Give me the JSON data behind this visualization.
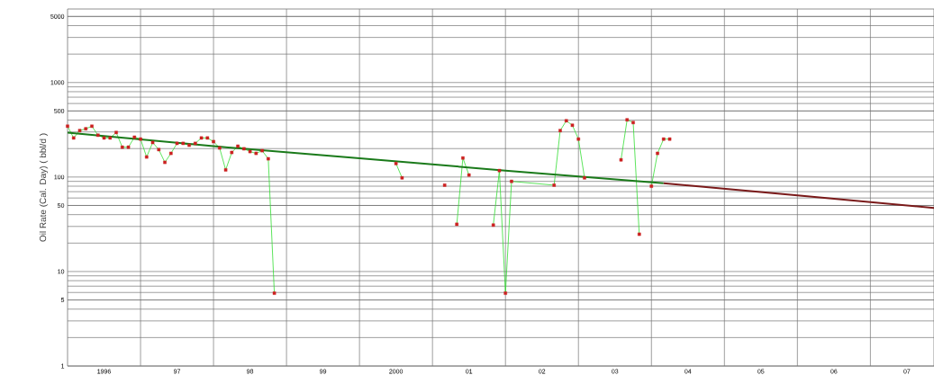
{
  "chart_data": {
    "type": "line",
    "ylabel": "Oil Rate (Cal. Day) ( bbl/d )",
    "x": [
      "1996-01",
      "1996-02",
      "1996-03",
      "1996-04",
      "1996-05",
      "1996-06",
      "1996-07",
      "1996-08",
      "1996-09",
      "1996-10",
      "1996-11",
      "1996-12",
      "1997-01",
      "1997-02",
      "1997-03",
      "1997-04",
      "1997-05",
      "1997-06",
      "1997-07",
      "1997-08",
      "1997-09",
      "1997-10",
      "1997-11",
      "1997-12",
      "1998-01",
      "1998-02",
      "1998-03",
      "1998-04",
      "1998-05",
      "1998-06",
      "1998-07",
      "1998-08",
      "1998-09",
      "1998-10",
      "1998-11",
      "1999-09",
      "2000-07",
      "2000-08",
      "2000-12",
      "2001-03",
      "2001-04",
      "2001-05",
      "2001-06",
      "2001-07",
      "2001-09",
      "2001-11",
      "2001-12",
      "2002-01",
      "2002-02",
      "2002-09",
      "2002-10",
      "2002-11",
      "2002-12",
      "2003-01",
      "2003-02",
      "2003-05",
      "2003-08",
      "2003-09",
      "2003-10",
      "2003-11",
      "2003-12",
      "2004-01",
      "2004-02",
      "2004-03",
      "2004-04"
    ],
    "series": [
      {
        "type": "line",
        "marker": "none",
        "color": "#33dd33",
        "values": [
          345,
          259,
          310,
          324,
          345,
          277,
          259,
          259,
          296,
          207,
          207,
          264,
          252,
          163,
          232,
          195,
          143,
          178,
          227,
          227,
          217,
          227,
          259,
          259,
          237,
          203,
          119,
          182,
          212,
          199,
          186,
          178,
          190,
          156,
          5.9,
          null,
          139,
          98,
          null,
          null,
          null,
          31.6,
          159,
          105,
          null,
          31,
          117,
          5.9,
          90,
          82,
          310,
          394,
          353,
          252,
          98,
          null,
          152,
          403,
          377,
          24.8,
          null,
          80,
          178,
          252,
          252
        ]
      },
      {
        "type": "scatter",
        "marker": "square",
        "color": "#cc2020",
        "values": [
          345,
          259,
          310,
          324,
          345,
          277,
          259,
          259,
          296,
          207,
          207,
          264,
          252,
          163,
          232,
          195,
          143,
          178,
          227,
          227,
          217,
          227,
          259,
          259,
          237,
          203,
          119,
          182,
          212,
          199,
          186,
          178,
          190,
          156,
          5.9,
          null,
          139,
          98,
          null,
          82,
          null,
          31.6,
          159,
          105,
          null,
          31,
          117,
          5.9,
          90,
          82,
          310,
          394,
          353,
          252,
          98,
          null,
          152,
          403,
          377,
          24.8,
          null,
          80,
          178,
          252,
          252
        ]
      },
      {
        "marker": "none",
        "color": "#1a7a1a",
        "x": [
          "1996-01",
          "1998-01",
          "2000-01",
          "2002-01",
          "2004-03"
        ],
        "values": [
          295,
          212,
          158,
          117,
          86
        ]
      },
      {
        "marker": "none",
        "color": "#7a1a1a",
        "x": [
          "2004-03",
          "2006-01",
          "2007-11-15"
        ],
        "values": [
          86,
          64,
          47
        ]
      }
    ],
    "xlim": [
      "1996-01",
      "2007-11-15"
    ],
    "xticks": [
      {
        "value": "1996-07",
        "label": "1996"
      },
      {
        "value": "1997-01",
        "label": null
      },
      {
        "value": "1997-07",
        "label": "97"
      },
      {
        "value": "1998-01",
        "label": null
      },
      {
        "value": "1998-07",
        "label": "98"
      },
      {
        "value": "1999-01",
        "label": null
      },
      {
        "value": "1999-07",
        "label": "99"
      },
      {
        "value": "2000-01",
        "label": null
      },
      {
        "value": "2000-07",
        "label": "2000"
      },
      {
        "value": "2001-01",
        "label": null
      },
      {
        "value": "2001-07",
        "label": "01"
      },
      {
        "value": "2002-01",
        "label": null
      },
      {
        "value": "2002-07",
        "label": "02"
      },
      {
        "value": "2003-01",
        "label": null
      },
      {
        "value": "2003-07",
        "label": "03"
      },
      {
        "value": "2004-01",
        "label": null
      },
      {
        "value": "2004-07",
        "label": "04"
      },
      {
        "value": "2005-01",
        "label": null
      },
      {
        "value": "2005-07",
        "label": "05"
      },
      {
        "value": "2006-01",
        "label": null
      },
      {
        "value": "2006-07",
        "label": "06"
      },
      {
        "value": "2007-01",
        "label": null
      },
      {
        "value": "2007-07",
        "label": "07"
      }
    ],
    "ylim": [
      1,
      6000
    ],
    "yticks": [
      1,
      5,
      10,
      50,
      100,
      500,
      1000,
      5000
    ],
    "log": "y",
    "grid": true
  }
}
